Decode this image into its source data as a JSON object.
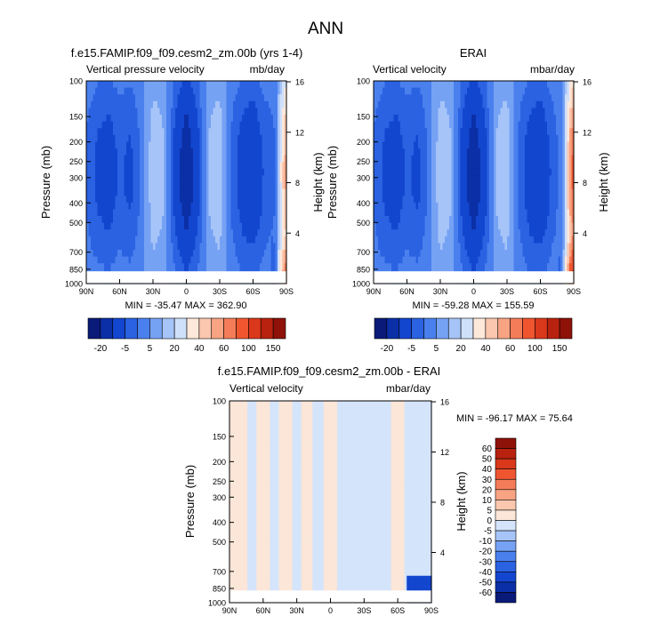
{
  "figure": {
    "title": "ANN"
  },
  "palette_abs": [
    "#0a1a78",
    "#0b2fa6",
    "#1346cf",
    "#2a62e2",
    "#4a80ee",
    "#76a2f4",
    "#a6c4f8",
    "#cfe0fb",
    "#fde8da",
    "#fbc7ae",
    "#f8a382",
    "#f47c58",
    "#ef5630",
    "#d9381a",
    "#b8220f",
    "#8e1208"
  ],
  "palette_diff": [
    "#0a1a78",
    "#0b2fa6",
    "#1346cf",
    "#2a62e2",
    "#4a80ee",
    "#76a2f4",
    "#a6c4f8",
    "#d4e4fb",
    "#fbe6d8",
    "#fbc7ae",
    "#f8a382",
    "#f47c58",
    "#ef5630",
    "#d9381a",
    "#b8220f",
    "#8e1208"
  ],
  "chart_data": [
    {
      "type": "heatmap",
      "id": "model",
      "title": "f.e15.FAMIP.f09_f09.cesm2_zm.00b (yrs 1-4)",
      "left_label": "Vertical pressure velocity",
      "units": "mb/day",
      "ylabel": "Pressure (mb)",
      "y2label": "Height (km)",
      "x_ticks": [
        "90N",
        "60N",
        "30N",
        "0",
        "30S",
        "60S",
        "90S"
      ],
      "x_values": [
        90,
        60,
        30,
        0,
        -30,
        -60,
        -90
      ],
      "y_ticks": [
        "100",
        "150",
        "200",
        "250",
        "300",
        "400",
        "500",
        "700",
        "850",
        "1000"
      ],
      "y_values": [
        100,
        150,
        200,
        250,
        300,
        400,
        500,
        700,
        850,
        1000
      ],
      "y2_ticks": [
        "16",
        "12",
        "8",
        "4"
      ],
      "y2_values": [
        16,
        12,
        8,
        4
      ],
      "stats": "MIN = -35.47  MAX = 362.90",
      "min": -35.47,
      "max": 362.9,
      "colorbar_labels": [
        "-20",
        "-5",
        "5",
        "20",
        "40",
        "60",
        "100",
        "150"
      ],
      "levels": [
        -30,
        -20,
        -10,
        -5,
        0,
        5,
        10,
        20,
        30,
        40,
        50,
        60,
        80,
        100,
        150
      ],
      "profile_lat": [
        90,
        80,
        70,
        60,
        50,
        40,
        30,
        20,
        10,
        0,
        -10,
        -20,
        -30,
        -40,
        -50,
        -60,
        -70,
        -80,
        -90
      ],
      "profile_value": [
        -5,
        -10,
        -12,
        -8,
        -10,
        -3,
        8,
        5,
        -12,
        -25,
        -12,
        5,
        8,
        -5,
        -12,
        -15,
        -8,
        -5,
        40
      ]
    },
    {
      "type": "heatmap",
      "id": "obs",
      "title": "ERAI",
      "left_label": "Vertical velocity",
      "units": "mbar/day",
      "ylabel": "Pressure (mb)",
      "y2label": "Height (km)",
      "x_ticks": [
        "90N",
        "60N",
        "30N",
        "0",
        "30S",
        "60S",
        "90S"
      ],
      "x_values": [
        90,
        60,
        30,
        0,
        -30,
        -60,
        -90
      ],
      "y_ticks": [
        "100",
        "150",
        "200",
        "250",
        "300",
        "400",
        "500",
        "700",
        "850",
        "1000"
      ],
      "y_values": [
        100,
        150,
        200,
        250,
        300,
        400,
        500,
        700,
        850,
        1000
      ],
      "y2_ticks": [
        "16",
        "12",
        "8",
        "4"
      ],
      "y2_values": [
        16,
        12,
        8,
        4
      ],
      "stats": "MIN = -59.28  MAX = 155.59",
      "min": -59.28,
      "max": 155.59,
      "colorbar_labels": [
        "-20",
        "-5",
        "5",
        "20",
        "40",
        "60",
        "100",
        "150"
      ],
      "levels": [
        -30,
        -20,
        -10,
        -5,
        0,
        5,
        10,
        20,
        30,
        40,
        50,
        60,
        80,
        100,
        150
      ],
      "profile_lat": [
        90,
        80,
        70,
        60,
        50,
        40,
        30,
        20,
        10,
        0,
        -10,
        -20,
        -30,
        -40,
        -50,
        -60,
        -70,
        -80,
        -90
      ],
      "profile_value": [
        -5,
        -10,
        -12,
        -8,
        -10,
        -3,
        8,
        5,
        -12,
        -25,
        -12,
        5,
        8,
        -5,
        -12,
        -15,
        -8,
        -2,
        60
      ]
    },
    {
      "type": "heatmap",
      "id": "diff",
      "title": "f.e15.FAMIP.f09_f09.cesm2_zm.00b - ERAI",
      "left_label": "Vertical velocity",
      "units": "mbar/day",
      "ylabel": "Pressure (mb)",
      "y2label": "Height (km)",
      "x_ticks": [
        "90N",
        "60N",
        "30N",
        "0",
        "30S",
        "60S",
        "90S"
      ],
      "x_values": [
        90,
        60,
        30,
        0,
        -30,
        -60,
        -90
      ],
      "y_ticks": [
        "100",
        "150",
        "200",
        "250",
        "300",
        "400",
        "500",
        "700",
        "850",
        "1000"
      ],
      "y_values": [
        100,
        150,
        200,
        250,
        300,
        400,
        500,
        700,
        850,
        1000
      ],
      "y2_ticks": [
        "16",
        "12",
        "8",
        "4"
      ],
      "y2_values": [
        16,
        12,
        8,
        4
      ],
      "stats": "MIN = -96.17  MAX =  75.64",
      "min": -96.17,
      "max": 75.64,
      "colorbar_labels": [
        "60",
        "50",
        "40",
        "30",
        "20",
        "10",
        "5",
        "0",
        "-5",
        "-10",
        "-20",
        "-30",
        "-40",
        "-50",
        "-60"
      ],
      "levels": [
        -60,
        -50,
        -40,
        -30,
        -20,
        -10,
        -5,
        0,
        5,
        10,
        20,
        30,
        40,
        50,
        60
      ],
      "profile_lat": [
        90,
        80,
        70,
        60,
        50,
        40,
        30,
        20,
        10,
        0,
        -10,
        -20,
        -30,
        -40,
        -50,
        -60,
        -70,
        -80,
        -90
      ],
      "profile_value": [
        3,
        3,
        -2,
        3,
        -2,
        3,
        -2,
        2,
        -3,
        3,
        -2,
        -3,
        -2,
        -3,
        -2,
        3,
        -2,
        -3,
        -2
      ]
    }
  ]
}
